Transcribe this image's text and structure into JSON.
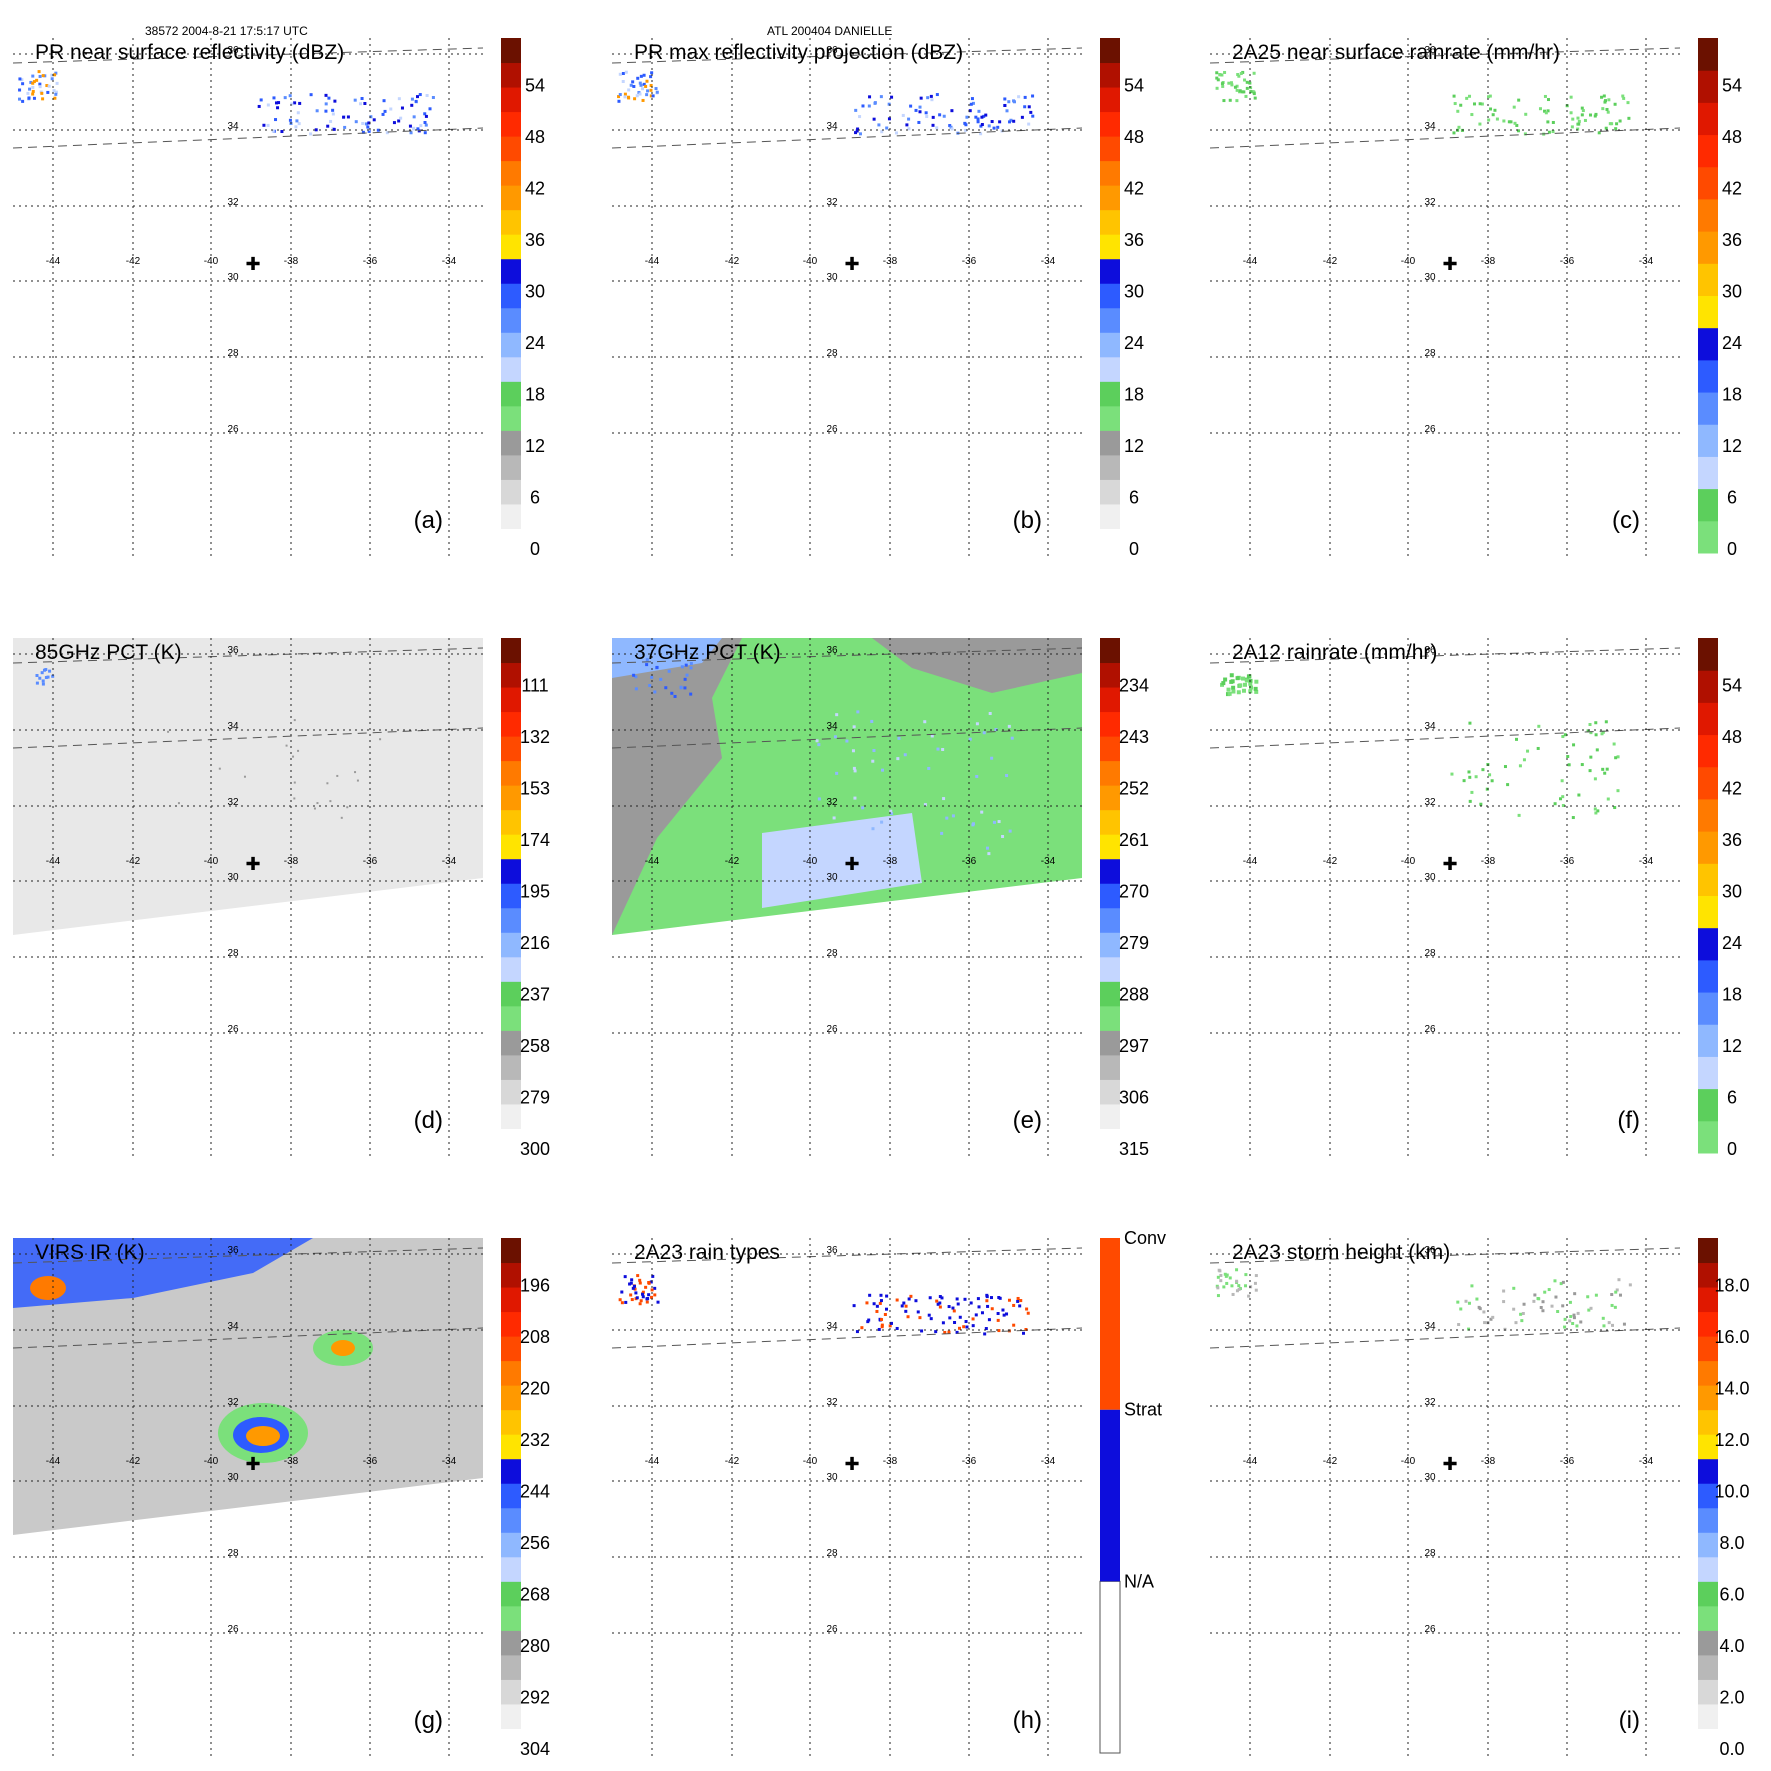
{
  "header": {
    "orbit_time": "38572 2004-8-21 17:5:17 UTC",
    "storm": "ATL 200404 DANIELLE"
  },
  "map": {
    "lon_ticks": [
      "-44",
      "-42",
      "-40",
      "-38",
      "-36",
      "-34"
    ],
    "lat_ticks": [
      "36",
      "34",
      "32",
      "30",
      "28",
      "26"
    ],
    "storm_center_marker": "✚"
  },
  "chart_data": [
    {
      "id": "a",
      "type": "heatmap",
      "title": "PR near surface reflectivity (dBZ)",
      "label": "(a)",
      "colorbar": "dbz",
      "ticks": [
        "0",
        "6",
        "12",
        "18",
        "24",
        "30",
        "36",
        "42",
        "48",
        "54"
      ],
      "vmin": 0,
      "vmax": 60,
      "swath": "pr",
      "field": "none",
      "overlay": "pr_rain"
    },
    {
      "id": "b",
      "type": "heatmap",
      "title": "PR max reflectivity projection (dBZ)",
      "label": "(b)",
      "colorbar": "dbz",
      "ticks": [
        "0",
        "6",
        "12",
        "18",
        "24",
        "30",
        "36",
        "42",
        "48",
        "54"
      ],
      "vmin": 0,
      "vmax": 60,
      "swath": "pr",
      "field": "none",
      "overlay": "pr_rain_contour"
    },
    {
      "id": "c",
      "type": "heatmap",
      "title": "2A25 near surface rainrate (mm/hr)",
      "label": "(c)",
      "colorbar": "rain",
      "ticks": [
        "0",
        "6",
        "12",
        "18",
        "24",
        "30",
        "36",
        "42",
        "48",
        "54"
      ],
      "vmin": 0,
      "vmax": 60,
      "swath": "pr",
      "field": "none",
      "overlay": "pr_rainrate"
    },
    {
      "id": "d",
      "type": "heatmap",
      "title": "85GHz PCT (K)",
      "label": "(d)",
      "colorbar": "pct",
      "ticks": [
        "300",
        "279",
        "258",
        "237",
        "216",
        "195",
        "174",
        "153",
        "132",
        "111"
      ],
      "vmin": 90,
      "vmax": 300,
      "swath": "tmi",
      "field": "light_gray",
      "overlay": "pct85"
    },
    {
      "id": "e",
      "type": "heatmap",
      "title": "37GHz PCT (K)",
      "label": "(e)",
      "colorbar": "pct",
      "ticks": [
        "315",
        "306",
        "297",
        "288",
        "279",
        "270",
        "261",
        "252",
        "243",
        "234"
      ],
      "vmin": 225,
      "vmax": 315,
      "swath": "tmi",
      "field": "green",
      "overlay": "pct37"
    },
    {
      "id": "f",
      "type": "heatmap",
      "title": "2A12 rainrate (mm/hr)",
      "label": "(f)",
      "colorbar": "rain",
      "ticks": [
        "0",
        "6",
        "12",
        "18",
        "24",
        "30",
        "36",
        "42",
        "48",
        "54"
      ],
      "vmin": 0,
      "vmax": 60,
      "swath": "none",
      "field": "none",
      "overlay": "tmi_rain"
    },
    {
      "id": "g",
      "type": "heatmap",
      "title": "VIRS IR (K)",
      "label": "(g)",
      "colorbar": "pct",
      "ticks": [
        "304",
        "292",
        "280",
        "268",
        "256",
        "244",
        "232",
        "220",
        "208",
        "196"
      ],
      "vmin": 184,
      "vmax": 304,
      "swath": "tmi",
      "field": "gray",
      "overlay": "ir"
    },
    {
      "id": "h",
      "type": "heatmap",
      "title": "2A23 rain types",
      "label": "(h)",
      "colorbar": "types",
      "ticks": [
        "N/A",
        "Strat",
        "Conv"
      ],
      "vmin": 0,
      "vmax": 3,
      "swath": "pr",
      "field": "none",
      "overlay": "raintype"
    },
    {
      "id": "i",
      "type": "heatmap",
      "title": "2A23 storm height (km)",
      "label": "(i)",
      "colorbar": "height",
      "ticks": [
        "0.0",
        "2.0",
        "4.0",
        "6.0",
        "8.0",
        "10.0",
        "12.0",
        "14.0",
        "16.0",
        "18.0"
      ],
      "vmin": 0,
      "vmax": 20,
      "swath": "pr",
      "field": "none",
      "overlay": "stormheight"
    }
  ],
  "colors": {
    "white": "#ffffff",
    "light_gray": "#dcdcdc",
    "gray": "#a8a8a8",
    "green": "#7be07b",
    "light_blue": "#c4d6ff",
    "blue": "#4a86ff",
    "dark_blue": "#0d0ddc",
    "yellow": "#ffe400",
    "orange": "#ff9900",
    "red": "#ff2a00",
    "dark_red": "#6b1100",
    "black": "#000000"
  }
}
